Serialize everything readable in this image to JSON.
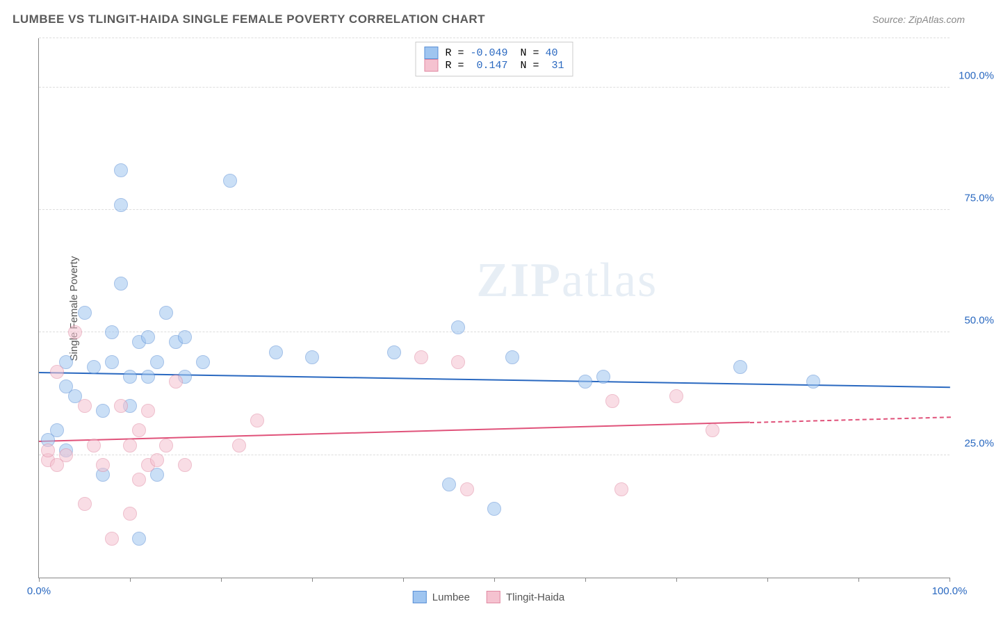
{
  "title": "LUMBEE VS TLINGIT-HAIDA SINGLE FEMALE POVERTY CORRELATION CHART",
  "source": "Source: ZipAtlas.com",
  "watermark_zip": "ZIP",
  "watermark_atlas": "atlas",
  "y_axis_label": "Single Female Poverty",
  "chart": {
    "type": "scatter",
    "background_color": "#ffffff",
    "grid_color": "#dddddd",
    "axis_color": "#888888",
    "xlim": [
      0,
      100
    ],
    "ylim": [
      0,
      110
    ],
    "x_ticks": [
      0,
      10,
      20,
      30,
      40,
      50,
      60,
      70,
      80,
      90,
      100
    ],
    "x_tick_labels": {
      "0": "0.0%",
      "100": "100.0%"
    },
    "x_label_color": "#2968c0",
    "y_gridlines": [
      25,
      50,
      75,
      100,
      110
    ],
    "y_tick_labels": {
      "25": "25.0%",
      "50": "50.0%",
      "75": "75.0%",
      "100": "100.0%"
    },
    "y_label_color": "#2968c0",
    "marker_radius": 10,
    "marker_opacity": 0.55,
    "series": [
      {
        "name": "Lumbee",
        "fill_color": "#9fc5f0",
        "stroke_color": "#5a8fd6",
        "trend": {
          "x1": 0,
          "y1": 42,
          "x2": 100,
          "y2": 39,
          "color": "#2968c0",
          "dashed_after_x": null
        },
        "points": [
          [
            1,
            28
          ],
          [
            2,
            30
          ],
          [
            3,
            39
          ],
          [
            3,
            44
          ],
          [
            3,
            26
          ],
          [
            4,
            37
          ],
          [
            5,
            54
          ],
          [
            6,
            43
          ],
          [
            7,
            34
          ],
          [
            7,
            21
          ],
          [
            8,
            50
          ],
          [
            8,
            44
          ],
          [
            9,
            83
          ],
          [
            9,
            60
          ],
          [
            9,
            76
          ],
          [
            10,
            35
          ],
          [
            10,
            41
          ],
          [
            11,
            48
          ],
          [
            11,
            8
          ],
          [
            12,
            41
          ],
          [
            12,
            49
          ],
          [
            13,
            44
          ],
          [
            13,
            21
          ],
          [
            14,
            54
          ],
          [
            15,
            48
          ],
          [
            16,
            41
          ],
          [
            16,
            49
          ],
          [
            18,
            44
          ],
          [
            21,
            81
          ],
          [
            26,
            46
          ],
          [
            30,
            45
          ],
          [
            39,
            46
          ],
          [
            45,
            19
          ],
          [
            46,
            51
          ],
          [
            50,
            14
          ],
          [
            52,
            45
          ],
          [
            60,
            40
          ],
          [
            62,
            41
          ],
          [
            77,
            43
          ],
          [
            85,
            40
          ]
        ]
      },
      {
        "name": "Tlingit-Haida",
        "fill_color": "#f5c2d0",
        "stroke_color": "#e18aa3",
        "trend": {
          "x1": 0,
          "y1": 28,
          "x2": 100,
          "y2": 33,
          "color": "#e0527a",
          "dashed_after_x": 78
        },
        "points": [
          [
            1,
            24
          ],
          [
            1,
            26
          ],
          [
            2,
            23
          ],
          [
            2,
            42
          ],
          [
            3,
            25
          ],
          [
            4,
            50
          ],
          [
            5,
            35
          ],
          [
            5,
            15
          ],
          [
            6,
            27
          ],
          [
            7,
            23
          ],
          [
            8,
            8
          ],
          [
            9,
            35
          ],
          [
            10,
            13
          ],
          [
            10,
            27
          ],
          [
            11,
            30
          ],
          [
            11,
            20
          ],
          [
            12,
            23
          ],
          [
            12,
            34
          ],
          [
            13,
            24
          ],
          [
            14,
            27
          ],
          [
            15,
            40
          ],
          [
            16,
            23
          ],
          [
            22,
            27
          ],
          [
            24,
            32
          ],
          [
            42,
            45
          ],
          [
            46,
            44
          ],
          [
            47,
            18
          ],
          [
            63,
            36
          ],
          [
            64,
            18
          ],
          [
            70,
            37
          ],
          [
            74,
            30
          ]
        ]
      }
    ]
  },
  "legend_top": [
    {
      "swatch_fill": "#9fc5f0",
      "swatch_stroke": "#5a8fd6",
      "r_label": "R = ",
      "r_value": "-0.049",
      "n_label": "  N = ",
      "n_value": "40"
    },
    {
      "swatch_fill": "#f5c2d0",
      "swatch_stroke": "#e18aa3",
      "r_label": "R = ",
      "r_value": " 0.147",
      "n_label": "  N = ",
      "n_value": " 31"
    }
  ],
  "legend_bottom": [
    {
      "swatch_fill": "#9fc5f0",
      "swatch_stroke": "#5a8fd6",
      "label": "Lumbee"
    },
    {
      "swatch_fill": "#f5c2d0",
      "swatch_stroke": "#e18aa3",
      "label": "Tlingit-Haida"
    }
  ],
  "stat_value_color": "#2968c0"
}
